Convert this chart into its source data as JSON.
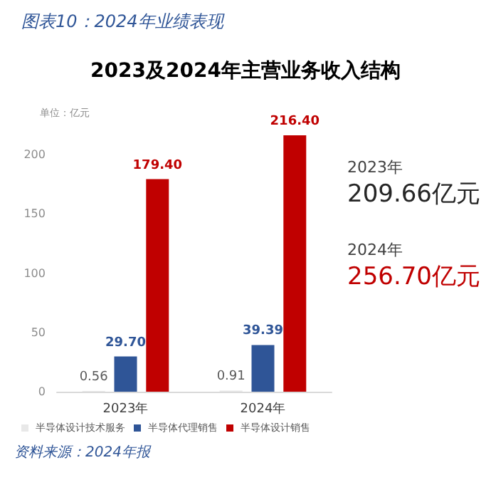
{
  "chart_data": {
    "type": "bar",
    "subtitle": "图表10：2024年业绩表现",
    "title": "2023及2024年主营业务收入结构",
    "categories": [
      "2023年",
      "2024年"
    ],
    "series": [
      {
        "name": "半导体设计技术服务",
        "color": "#e8e8e8",
        "values": [
          0.56,
          0.91
        ],
        "value_labels": [
          "0.56",
          "0.91"
        ]
      },
      {
        "name": "半导体代理销售",
        "color": "#2f5597",
        "values": [
          29.7,
          39.39
        ],
        "value_labels": [
          "29.70",
          "39.39"
        ]
      },
      {
        "name": "半导体设计销售",
        "color": "#c00000",
        "values": [
          179.4,
          216.4
        ],
        "value_labels": [
          "179.40",
          "216.40"
        ]
      }
    ],
    "ylim": [
      0,
      220
    ],
    "yticks": [
      0,
      50,
      100,
      150,
      200
    ],
    "grid": false,
    "legend": "bottom left",
    "annotations": [
      "单位：亿元",
      "2023年",
      "209.66亿元",
      "2024年",
      "256.70亿元",
      "资料来源：2024年报"
    ]
  }
}
